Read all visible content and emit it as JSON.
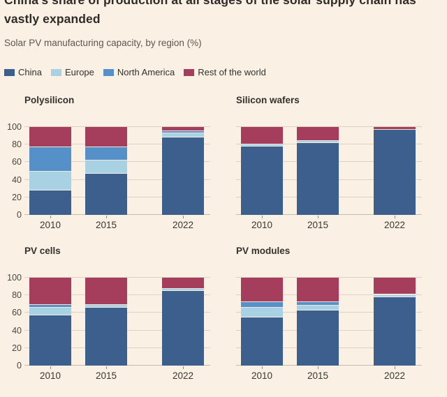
{
  "header": {
    "title": "China's share of production at all stages of the solar supply chain has vastly expanded",
    "subtitle": "Solar PV manufacturing capacity, by region (%)"
  },
  "legend": {
    "items": [
      {
        "label": "China",
        "color_key": "china"
      },
      {
        "label": "Europe",
        "color_key": "europe"
      },
      {
        "label": "North America",
        "color_key": "north_america"
      },
      {
        "label": "Rest of the world",
        "color_key": "rest_of_world"
      }
    ]
  },
  "colors": {
    "china": "#3D5F8D",
    "europe": "#A8D2E4",
    "north_america": "#5590C8",
    "rest_of_world": "#A53E5D",
    "background": "#FAF0E3",
    "gridline": "#DCD0C2",
    "baseline": "#C8BBAC"
  },
  "chart_data": [
    {
      "type": "bar",
      "stacked": true,
      "title": "Polysilicon",
      "categories": [
        "2010",
        "2015",
        "2022"
      ],
      "series": [
        {
          "name": "China",
          "color_key": "china",
          "values": [
            28,
            47,
            88
          ]
        },
        {
          "name": "Europe",
          "color_key": "europe",
          "values": [
            21,
            15,
            5
          ]
        },
        {
          "name": "North America",
          "color_key": "north_america",
          "values": [
            28,
            15,
            2
          ]
        },
        {
          "name": "Rest of the world",
          "color_key": "rest_of_world",
          "values": [
            23,
            23,
            5
          ]
        }
      ],
      "ylim": [
        0,
        100
      ],
      "yticks": [
        0,
        20,
        40,
        60,
        80,
        100
      ],
      "grid": true,
      "y_labels": true,
      "legend_position": "top"
    },
    {
      "type": "bar",
      "stacked": true,
      "title": "Silicon wafers",
      "categories": [
        "2010",
        "2015",
        "2022"
      ],
      "series": [
        {
          "name": "China",
          "color_key": "china",
          "values": [
            78,
            82,
            97
          ]
        },
        {
          "name": "Europe",
          "color_key": "europe",
          "values": [
            2,
            2,
            0
          ]
        },
        {
          "name": "North America",
          "color_key": "north_america",
          "values": [
            0,
            0,
            0
          ]
        },
        {
          "name": "Rest of the world",
          "color_key": "rest_of_world",
          "values": [
            20,
            16,
            3
          ]
        }
      ],
      "ylim": [
        0,
        100
      ],
      "yticks": [
        0,
        20,
        40,
        60,
        80,
        100
      ],
      "grid": true,
      "y_labels": false,
      "legend_position": "top"
    },
    {
      "type": "bar",
      "stacked": true,
      "title": "PV cells",
      "categories": [
        "2010",
        "2015",
        "2022"
      ],
      "series": [
        {
          "name": "China",
          "color_key": "china",
          "values": [
            57,
            66,
            85
          ]
        },
        {
          "name": "Europe",
          "color_key": "europe",
          "values": [
            9,
            3,
            2
          ]
        },
        {
          "name": "North America",
          "color_key": "north_america",
          "values": [
            3,
            0,
            0
          ]
        },
        {
          "name": "Rest of the world",
          "color_key": "rest_of_world",
          "values": [
            31,
            31,
            13
          ]
        }
      ],
      "ylim": [
        0,
        100
      ],
      "yticks": [
        0,
        20,
        40,
        60,
        80,
        100
      ],
      "grid": true,
      "y_labels": true,
      "legend_position": "top"
    },
    {
      "type": "bar",
      "stacked": true,
      "title": "PV modules",
      "categories": [
        "2010",
        "2015",
        "2022"
      ],
      "series": [
        {
          "name": "China",
          "color_key": "china",
          "values": [
            55,
            63,
            78
          ]
        },
        {
          "name": "Europe",
          "color_key": "europe",
          "values": [
            11,
            5,
            2
          ]
        },
        {
          "name": "North America",
          "color_key": "north_america",
          "values": [
            6,
            4,
            1
          ]
        },
        {
          "name": "Rest of the world",
          "color_key": "rest_of_world",
          "values": [
            28,
            28,
            19
          ]
        }
      ],
      "ylim": [
        0,
        100
      ],
      "yticks": [
        0,
        20,
        40,
        60,
        80,
        100
      ],
      "grid": true,
      "y_labels": false,
      "legend_position": "top"
    }
  ]
}
